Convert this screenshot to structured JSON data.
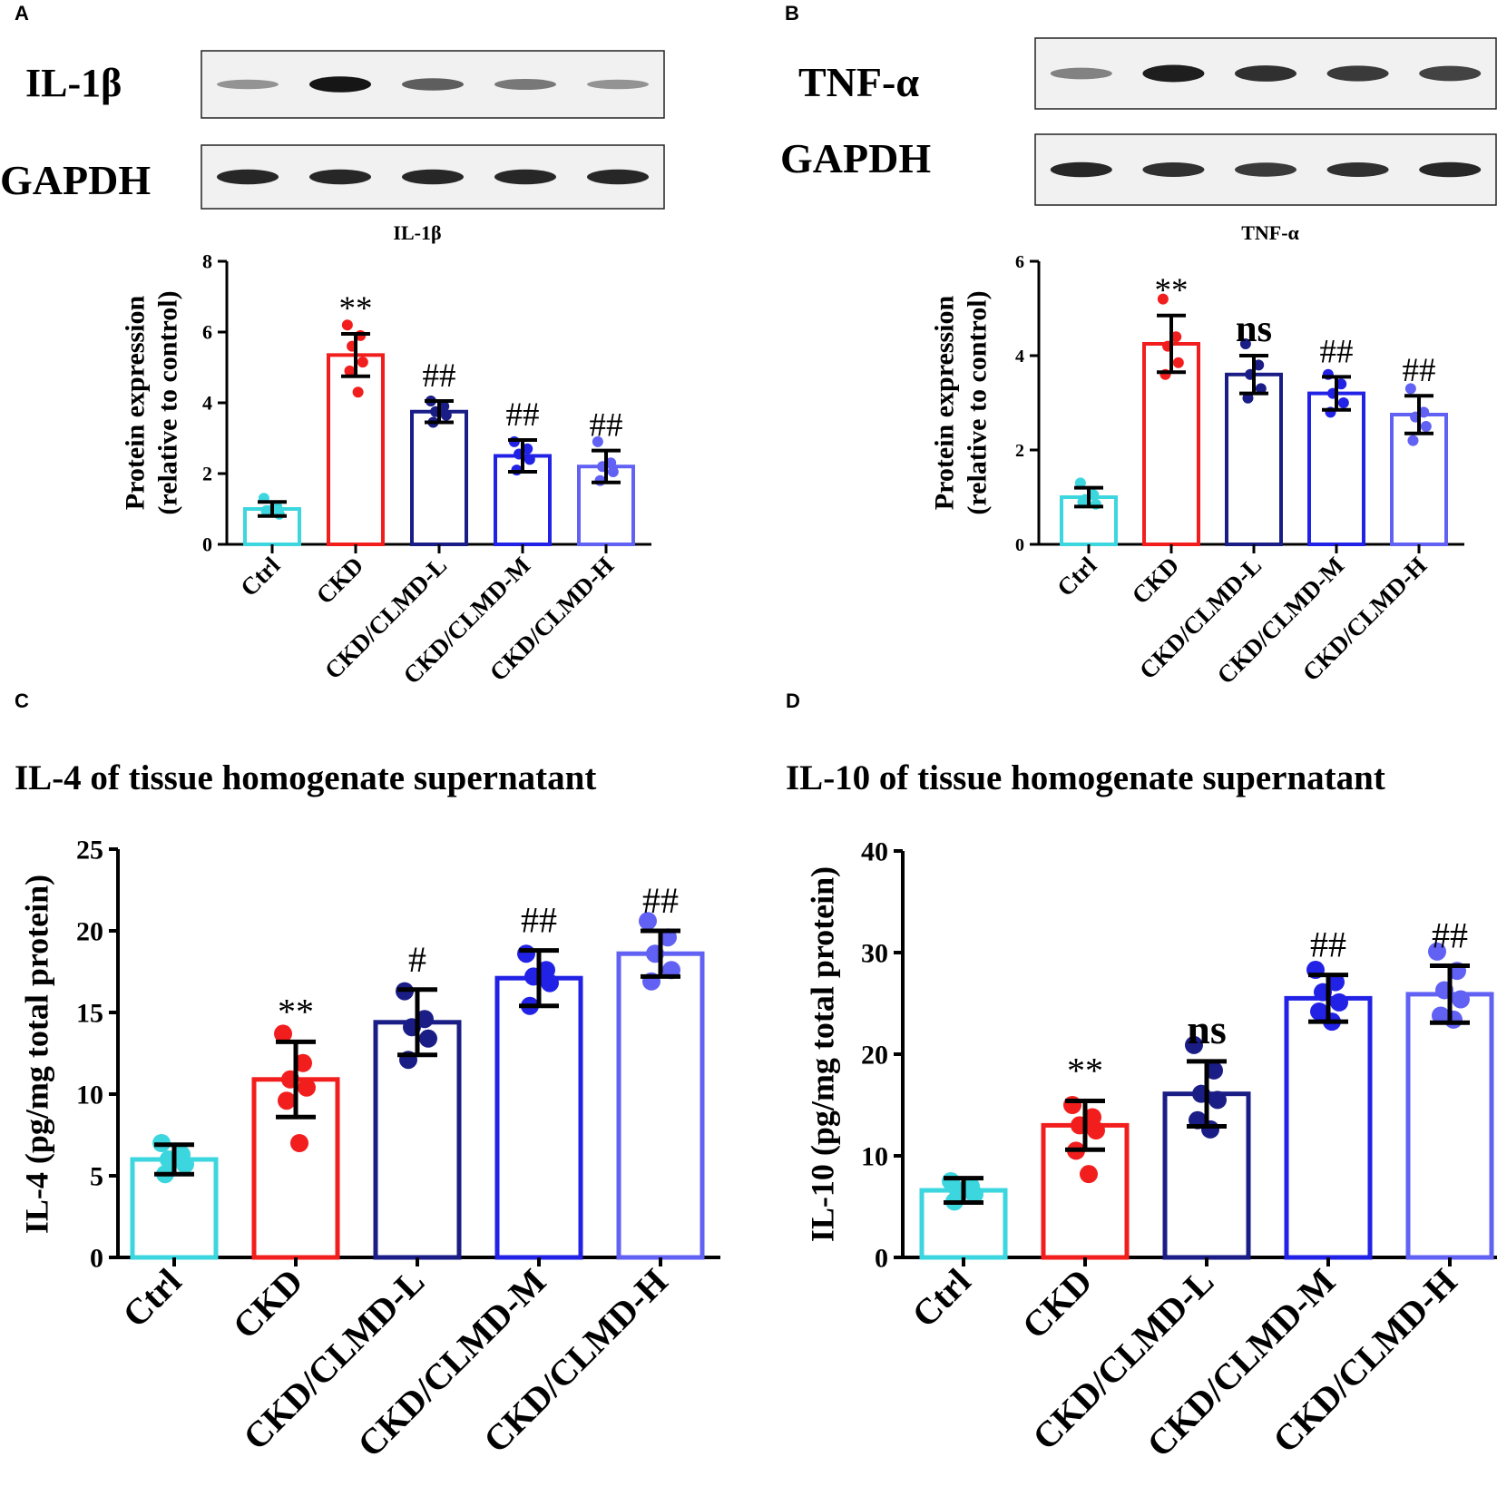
{
  "colors": {
    "ctrl": "#3cd6df",
    "ckd": "#f21e1e",
    "ckd_clmd_l": "#1a1d86",
    "ckd_clmd_m": "#2222e6",
    "ckd_clmd_h": "#6161f4",
    "axis": "#000000"
  },
  "chart_data": [
    {
      "panel": "A",
      "type": "bar",
      "title": "IL-1β",
      "blot_labels": [
        "IL-1β",
        "GAPDH"
      ],
      "ylabel": [
        "Protein expression",
        "(relative to control)"
      ],
      "xlabel": "",
      "ylim": [
        0,
        8
      ],
      "yticks": [
        0,
        2,
        4,
        6,
        8
      ],
      "categories": [
        "Ctrl",
        "CKD",
        "CKD/CLMD-L",
        "CKD/CLMD-M",
        "CKD/CLMD-H"
      ],
      "values": [
        1.0,
        5.35,
        3.75,
        2.5,
        2.2
      ],
      "errors": [
        0.2,
        0.6,
        0.3,
        0.45,
        0.45
      ],
      "points": [
        [
          1.3,
          1.05,
          0.95,
          0.85,
          0.95
        ],
        [
          6.2,
          5.9,
          5.6,
          5.15,
          4.9,
          4.3
        ],
        [
          4.05,
          3.9,
          3.75,
          3.65,
          3.45
        ],
        [
          2.9,
          2.7,
          2.55,
          2.4,
          2.1
        ],
        [
          2.9,
          2.3,
          2.2,
          2.05,
          1.8
        ]
      ],
      "annotations": [
        "",
        "**",
        "##",
        "##",
        "##"
      ]
    },
    {
      "panel": "B",
      "type": "bar",
      "title": "TNF-α",
      "blot_labels": [
        "TNF-α",
        "GAPDH"
      ],
      "ylabel": [
        "Protein expression",
        "(relative to control)"
      ],
      "xlabel": "",
      "ylim": [
        0,
        6
      ],
      "yticks": [
        0,
        2,
        4,
        6
      ],
      "categories": [
        "Ctrl",
        "CKD",
        "CKD/CLMD-L",
        "CKD/CLMD-M",
        "CKD/CLMD-H"
      ],
      "values": [
        1.0,
        4.25,
        3.6,
        3.2,
        2.75
      ],
      "errors": [
        0.2,
        0.6,
        0.4,
        0.35,
        0.4
      ],
      "points": [
        [
          1.3,
          1.05,
          0.95,
          0.85,
          0.9
        ],
        [
          5.2,
          4.4,
          4.2,
          3.85,
          3.6
        ],
        [
          4.25,
          3.8,
          3.6,
          3.3,
          3.1
        ],
        [
          3.6,
          3.4,
          3.2,
          3.0,
          2.8
        ],
        [
          3.3,
          2.8,
          2.7,
          2.5,
          2.2
        ]
      ],
      "annotations": [
        "",
        "**",
        "ns",
        "##",
        "##"
      ]
    },
    {
      "panel": "C",
      "type": "bar",
      "title": "IL-4 of tissue homogenate supernatant",
      "ylabel": [
        "IL-4 (pg/mg total protein)"
      ],
      "xlabel": "",
      "ylim": [
        0,
        25
      ],
      "yticks": [
        0,
        5,
        10,
        15,
        20,
        25
      ],
      "categories": [
        "Ctrl",
        "CKD",
        "CKD/CLMD-L",
        "CKD/CLMD-M",
        "CKD/CLMD-H"
      ],
      "values": [
        6.0,
        10.9,
        14.4,
        17.1,
        18.6
      ],
      "errors": [
        0.9,
        2.3,
        2.0,
        1.7,
        1.4
      ],
      "points": [
        [
          7.0,
          6.3,
          6.0,
          5.7,
          5.1
        ],
        [
          13.7,
          11.9,
          10.9,
          10.4,
          9.6,
          7.0
        ],
        [
          16.3,
          14.6,
          14.1,
          13.4,
          12.1
        ],
        [
          18.6,
          17.6,
          17.2,
          16.8,
          15.4
        ],
        [
          20.6,
          19.6,
          18.6,
          17.6,
          16.9
        ]
      ],
      "annotations": [
        "",
        "**",
        "#",
        "##",
        "##"
      ]
    },
    {
      "panel": "D",
      "type": "bar",
      "title": "IL-10 of tissue homogenate supernatant",
      "ylabel": [
        "IL-10 (pg/mg total protein)"
      ],
      "xlabel": "",
      "ylim": [
        0,
        40
      ],
      "yticks": [
        0,
        10,
        20,
        30,
        40
      ],
      "categories": [
        "Ctrl",
        "CKD",
        "CKD/CLMD-L",
        "CKD/CLMD-M",
        "CKD/CLMD-H"
      ],
      "values": [
        6.6,
        13.0,
        16.1,
        25.5,
        25.9
      ],
      "errors": [
        1.2,
        2.4,
        3.2,
        2.3,
        2.8
      ],
      "points": [
        [
          7.5,
          7.0,
          6.6,
          6.2,
          5.5
        ],
        [
          15.0,
          13.8,
          13.0,
          12.5,
          10.5,
          8.2
        ],
        [
          20.9,
          18.4,
          16.1,
          15.5,
          13.5,
          12.6
        ],
        [
          28.3,
          27.1,
          26.1,
          25.1,
          24.2,
          23.2
        ],
        [
          30.1,
          28.2,
          26.3,
          25.4,
          23.8,
          23.4
        ]
      ],
      "annotations": [
        "",
        "**",
        "ns",
        "##",
        "##"
      ]
    }
  ]
}
